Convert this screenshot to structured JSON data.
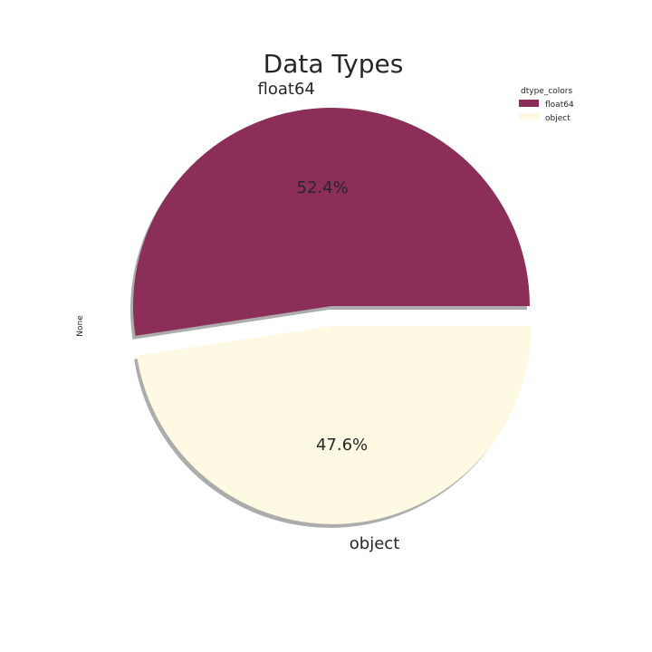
{
  "chart_data": {
    "type": "pie",
    "title": "Data Types",
    "ylabel": "None",
    "categories": [
      "float64",
      "object"
    ],
    "values": [
      52.4,
      47.6
    ],
    "value_labels": [
      "52.4%",
      "47.6%"
    ],
    "colors": [
      "#8b2f58",
      "#fdf9e3"
    ],
    "shadow": true,
    "explode": [
      0,
      0.1
    ],
    "start_angle_deg": 0,
    "direction": "counterclockwise",
    "legend": {
      "title": "dtype_colors",
      "placement": "top-right",
      "entries": [
        "float64",
        "object"
      ]
    }
  }
}
